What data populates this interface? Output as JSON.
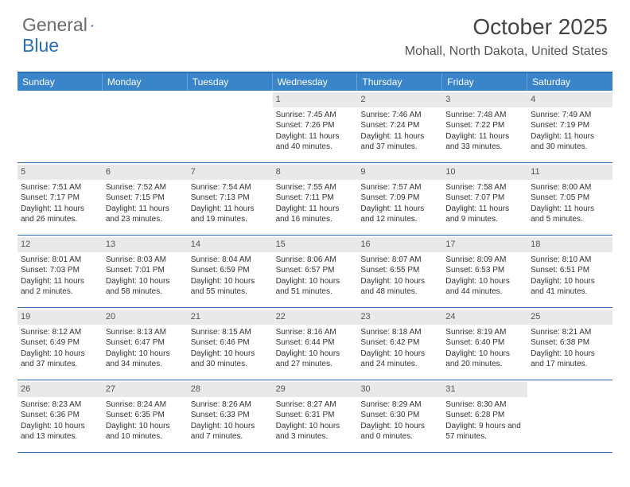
{
  "brand": {
    "first": "General",
    "second": "Blue"
  },
  "title": "October 2025",
  "location": "Mohall, North Dakota, United States",
  "colors": {
    "accent": "#3a85c9",
    "border": "#2a6db8",
    "numBg": "#e9e9e9"
  },
  "dayNames": [
    "Sunday",
    "Monday",
    "Tuesday",
    "Wednesday",
    "Thursday",
    "Friday",
    "Saturday"
  ],
  "weeks": [
    [
      {
        "n": "",
        "sr": "",
        "ss": "",
        "dl": ""
      },
      {
        "n": "",
        "sr": "",
        "ss": "",
        "dl": ""
      },
      {
        "n": "",
        "sr": "",
        "ss": "",
        "dl": ""
      },
      {
        "n": "1",
        "sr": "Sunrise: 7:45 AM",
        "ss": "Sunset: 7:26 PM",
        "dl": "Daylight: 11 hours and 40 minutes."
      },
      {
        "n": "2",
        "sr": "Sunrise: 7:46 AM",
        "ss": "Sunset: 7:24 PM",
        "dl": "Daylight: 11 hours and 37 minutes."
      },
      {
        "n": "3",
        "sr": "Sunrise: 7:48 AM",
        "ss": "Sunset: 7:22 PM",
        "dl": "Daylight: 11 hours and 33 minutes."
      },
      {
        "n": "4",
        "sr": "Sunrise: 7:49 AM",
        "ss": "Sunset: 7:19 PM",
        "dl": "Daylight: 11 hours and 30 minutes."
      }
    ],
    [
      {
        "n": "5",
        "sr": "Sunrise: 7:51 AM",
        "ss": "Sunset: 7:17 PM",
        "dl": "Daylight: 11 hours and 26 minutes."
      },
      {
        "n": "6",
        "sr": "Sunrise: 7:52 AM",
        "ss": "Sunset: 7:15 PM",
        "dl": "Daylight: 11 hours and 23 minutes."
      },
      {
        "n": "7",
        "sr": "Sunrise: 7:54 AM",
        "ss": "Sunset: 7:13 PM",
        "dl": "Daylight: 11 hours and 19 minutes."
      },
      {
        "n": "8",
        "sr": "Sunrise: 7:55 AM",
        "ss": "Sunset: 7:11 PM",
        "dl": "Daylight: 11 hours and 16 minutes."
      },
      {
        "n": "9",
        "sr": "Sunrise: 7:57 AM",
        "ss": "Sunset: 7:09 PM",
        "dl": "Daylight: 11 hours and 12 minutes."
      },
      {
        "n": "10",
        "sr": "Sunrise: 7:58 AM",
        "ss": "Sunset: 7:07 PM",
        "dl": "Daylight: 11 hours and 9 minutes."
      },
      {
        "n": "11",
        "sr": "Sunrise: 8:00 AM",
        "ss": "Sunset: 7:05 PM",
        "dl": "Daylight: 11 hours and 5 minutes."
      }
    ],
    [
      {
        "n": "12",
        "sr": "Sunrise: 8:01 AM",
        "ss": "Sunset: 7:03 PM",
        "dl": "Daylight: 11 hours and 2 minutes."
      },
      {
        "n": "13",
        "sr": "Sunrise: 8:03 AM",
        "ss": "Sunset: 7:01 PM",
        "dl": "Daylight: 10 hours and 58 minutes."
      },
      {
        "n": "14",
        "sr": "Sunrise: 8:04 AM",
        "ss": "Sunset: 6:59 PM",
        "dl": "Daylight: 10 hours and 55 minutes."
      },
      {
        "n": "15",
        "sr": "Sunrise: 8:06 AM",
        "ss": "Sunset: 6:57 PM",
        "dl": "Daylight: 10 hours and 51 minutes."
      },
      {
        "n": "16",
        "sr": "Sunrise: 8:07 AM",
        "ss": "Sunset: 6:55 PM",
        "dl": "Daylight: 10 hours and 48 minutes."
      },
      {
        "n": "17",
        "sr": "Sunrise: 8:09 AM",
        "ss": "Sunset: 6:53 PM",
        "dl": "Daylight: 10 hours and 44 minutes."
      },
      {
        "n": "18",
        "sr": "Sunrise: 8:10 AM",
        "ss": "Sunset: 6:51 PM",
        "dl": "Daylight: 10 hours and 41 minutes."
      }
    ],
    [
      {
        "n": "19",
        "sr": "Sunrise: 8:12 AM",
        "ss": "Sunset: 6:49 PM",
        "dl": "Daylight: 10 hours and 37 minutes."
      },
      {
        "n": "20",
        "sr": "Sunrise: 8:13 AM",
        "ss": "Sunset: 6:47 PM",
        "dl": "Daylight: 10 hours and 34 minutes."
      },
      {
        "n": "21",
        "sr": "Sunrise: 8:15 AM",
        "ss": "Sunset: 6:46 PM",
        "dl": "Daylight: 10 hours and 30 minutes."
      },
      {
        "n": "22",
        "sr": "Sunrise: 8:16 AM",
        "ss": "Sunset: 6:44 PM",
        "dl": "Daylight: 10 hours and 27 minutes."
      },
      {
        "n": "23",
        "sr": "Sunrise: 8:18 AM",
        "ss": "Sunset: 6:42 PM",
        "dl": "Daylight: 10 hours and 24 minutes."
      },
      {
        "n": "24",
        "sr": "Sunrise: 8:19 AM",
        "ss": "Sunset: 6:40 PM",
        "dl": "Daylight: 10 hours and 20 minutes."
      },
      {
        "n": "25",
        "sr": "Sunrise: 8:21 AM",
        "ss": "Sunset: 6:38 PM",
        "dl": "Daylight: 10 hours and 17 minutes."
      }
    ],
    [
      {
        "n": "26",
        "sr": "Sunrise: 8:23 AM",
        "ss": "Sunset: 6:36 PM",
        "dl": "Daylight: 10 hours and 13 minutes."
      },
      {
        "n": "27",
        "sr": "Sunrise: 8:24 AM",
        "ss": "Sunset: 6:35 PM",
        "dl": "Daylight: 10 hours and 10 minutes."
      },
      {
        "n": "28",
        "sr": "Sunrise: 8:26 AM",
        "ss": "Sunset: 6:33 PM",
        "dl": "Daylight: 10 hours and 7 minutes."
      },
      {
        "n": "29",
        "sr": "Sunrise: 8:27 AM",
        "ss": "Sunset: 6:31 PM",
        "dl": "Daylight: 10 hours and 3 minutes."
      },
      {
        "n": "30",
        "sr": "Sunrise: 8:29 AM",
        "ss": "Sunset: 6:30 PM",
        "dl": "Daylight: 10 hours and 0 minutes."
      },
      {
        "n": "31",
        "sr": "Sunrise: 8:30 AM",
        "ss": "Sunset: 6:28 PM",
        "dl": "Daylight: 9 hours and 57 minutes."
      },
      {
        "n": "",
        "sr": "",
        "ss": "",
        "dl": ""
      }
    ]
  ]
}
